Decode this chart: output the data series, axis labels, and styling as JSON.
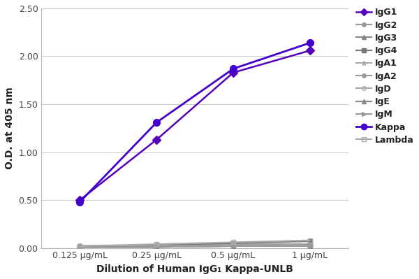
{
  "x_positions": [
    1,
    2,
    3,
    4
  ],
  "x_labels": [
    "0.125 μg/mL",
    "0.25 μg/mL",
    "0.5 μg/mL",
    "1 μg/mL"
  ],
  "series": {
    "IgG1": {
      "values": [
        0.5,
        1.13,
        1.83,
        2.06
      ],
      "color": "#5500bb",
      "marker": "D",
      "lw": 1.8,
      "ms": 6
    },
    "IgG2": {
      "values": [
        0.02,
        0.03,
        0.04,
        0.04
      ],
      "color": "#999999",
      "marker": "o",
      "lw": 1.5,
      "ms": 5
    },
    "IgG3": {
      "values": [
        0.01,
        0.02,
        0.02,
        0.03
      ],
      "color": "#888888",
      "marker": "^",
      "lw": 1.5,
      "ms": 5
    },
    "IgG4": {
      "values": [
        0.02,
        0.03,
        0.05,
        0.07
      ],
      "color": "#777777",
      "marker": "s",
      "lw": 1.5,
      "ms": 5
    },
    "IgA1": {
      "values": [
        0.01,
        0.01,
        0.02,
        0.02
      ],
      "color": "#aaaaaa",
      "marker": "*",
      "lw": 1.5,
      "ms": 6
    },
    "IgA2": {
      "values": [
        0.01,
        0.01,
        0.02,
        0.02
      ],
      "color": "#999999",
      "marker": "o",
      "lw": 1.5,
      "ms": 5
    },
    "IgD": {
      "values": [
        0.02,
        0.02,
        0.03,
        0.03
      ],
      "color": "#aaaaaa",
      "marker": "o",
      "lw": 1.5,
      "ms": 5,
      "mfc": "none"
    },
    "IgE": {
      "values": [
        0.01,
        0.01,
        0.02,
        0.02
      ],
      "color": "#888888",
      "marker": "^",
      "lw": 1.5,
      "ms": 5
    },
    "IgM": {
      "values": [
        0.01,
        0.01,
        0.02,
        0.02
      ],
      "color": "#999999",
      "marker": ">",
      "lw": 1.5,
      "ms": 5
    },
    "Kappa": {
      "values": [
        0.48,
        1.31,
        1.87,
        2.14
      ],
      "color": "#4400cc",
      "marker": "o",
      "lw": 2.0,
      "ms": 7
    },
    "Lambda": {
      "values": [
        0.02,
        0.04,
        0.06,
        0.08
      ],
      "color": "#aaaaaa",
      "marker": "s",
      "lw": 1.5,
      "ms": 5,
      "mfc": "none"
    }
  },
  "ylabel": "O.D. at 405 nm",
  "xlabel": "Dilution of Human IgG₁ Kappa-UNLB",
  "ylim": [
    0.0,
    2.5
  ],
  "yticks": [
    0.0,
    0.5,
    1.0,
    1.5,
    2.0,
    2.5
  ],
  "ytick_labels": [
    "0.00",
    "0.50",
    "1.00",
    "1.50",
    "2.00",
    "2.50"
  ],
  "bg_color": "#ffffff",
  "grid_color": "#cccccc",
  "legend_order": [
    "IgG1",
    "IgG2",
    "IgG3",
    "IgG4",
    "IgA1",
    "IgA2",
    "IgD",
    "IgE",
    "IgM",
    "Kappa",
    "Lambda"
  ]
}
